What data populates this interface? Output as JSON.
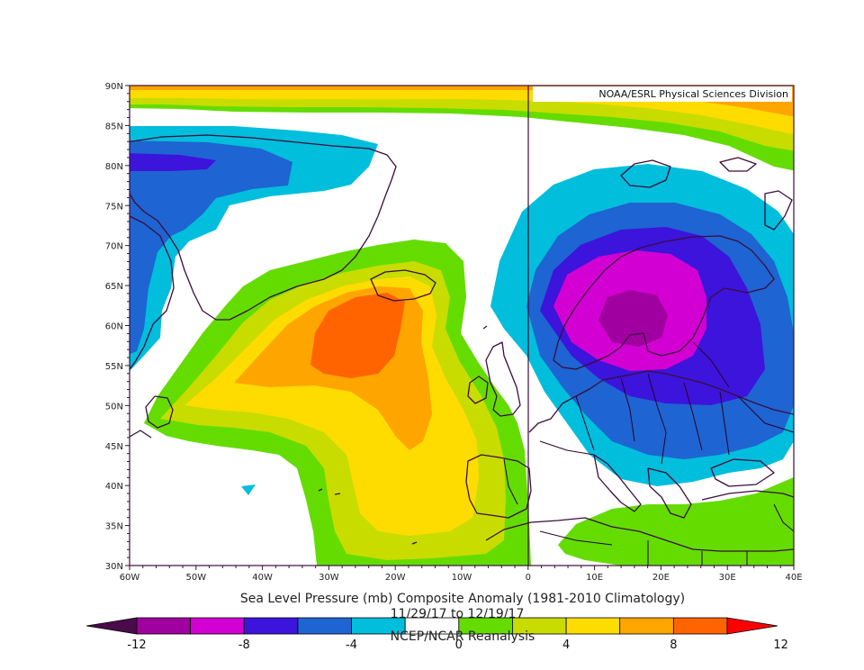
{
  "credit": "NOAA/ESRL Physical Sciences Division",
  "caption": {
    "line1": "Sea Level Pressure (mb) Composite Anomaly (1981-2010 Climatology)",
    "line2": "11/29/17 to 12/19/17",
    "line3": "NCEP/NCAR Reanalysis"
  },
  "lon_ticks": [
    "60W",
    "50W",
    "40W",
    "30W",
    "20W",
    "10W",
    "0",
    "10E",
    "20E",
    "30E",
    "40E"
  ],
  "lat_ticks": [
    "90N",
    "85N",
    "80N",
    "75N",
    "70N",
    "65N",
    "60N",
    "55N",
    "50N",
    "45N",
    "40N",
    "35N",
    "30N"
  ],
  "colorbar": {
    "labels": [
      "-12",
      "-8",
      "-4",
      "0",
      "4",
      "8",
      "12"
    ],
    "colors": [
      "#4b0a4b",
      "#a000a0",
      "#d200d2",
      "#3c14dc",
      "#1e64d2",
      "#00bedc",
      "#ffffff",
      "#64dc00",
      "#c8dc00",
      "#ffdc00",
      "#ffa500",
      "#ff6400",
      "#ff0000"
    ]
  },
  "colors": {
    "neg12": "#4b0a4b",
    "neg10": "#a000a0",
    "neg8": "#d200d2",
    "neg6": "#3c14dc",
    "neg4": "#1e64d2",
    "neg2": "#00bedc",
    "pos2": "#64dc00",
    "pos4": "#c8dc00",
    "pos6": "#ffdc00",
    "pos8": "#ffa500",
    "pos10": "#ff6400",
    "pos12": "#ff0000",
    "coast": "#3b0d3b"
  },
  "chart_data": {
    "type": "heatmap",
    "title": "Sea Level Pressure (mb) Composite Anomaly (1981-2010 Climatology)",
    "subtitle": "11/29/17 to 12/19/17",
    "source": "NCEP/NCAR Reanalysis",
    "units": "mb",
    "lon_range": [
      -60,
      40
    ],
    "lat_range": [
      30,
      90
    ],
    "contour_interval": 2,
    "colorbar_range": [
      -12,
      12
    ],
    "features": [
      {
        "kind": "high",
        "center_lon": -22,
        "center_lat": 58,
        "max_value": 10
      },
      {
        "kind": "low",
        "center_lon": 16,
        "center_lat": 60,
        "min_value": -12
      },
      {
        "kind": "high",
        "center_lon": 0,
        "center_lat": 88,
        "max_value": 8
      },
      {
        "kind": "low",
        "center_lon": -52,
        "center_lat": 80,
        "min_value": -6
      },
      {
        "kind": "high",
        "center_lon": 25,
        "center_lat": 35,
        "max_value": 2
      }
    ]
  }
}
